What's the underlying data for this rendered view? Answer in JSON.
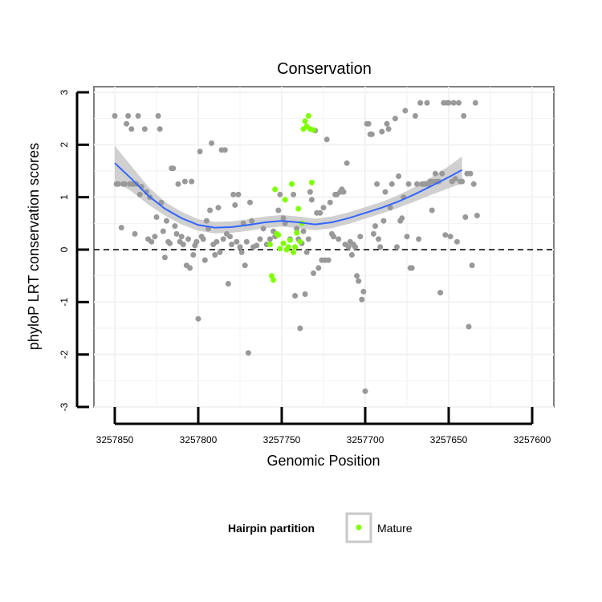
{
  "chart_data": {
    "type": "scatter",
    "title": "Conservation",
    "xlabel": "Genomic Position",
    "ylabel": "phyloP LRT conservation scores",
    "x_reversed": true,
    "xlim": [
      3257852,
      3257598
    ],
    "ylim": [
      -3,
      3
    ],
    "x_ticks": [
      3257850,
      3257800,
      3257750,
      3257700,
      3257650,
      3257600
    ],
    "x_tick_labels": [
      "3257850",
      "3257800",
      "3257750",
      "3257700",
      "3257650",
      "3257600"
    ],
    "y_ticks": [
      -3,
      -2,
      -1,
      0,
      1,
      2,
      3
    ],
    "y_tick_labels": [
      "-3",
      "-2",
      "-1",
      "0",
      "1",
      "2",
      "3"
    ],
    "grid": true,
    "reference_line": {
      "y": 0,
      "style": "dashed"
    },
    "colors": {
      "background_points": "#999999",
      "mature_points": "#7FFF00",
      "smooth_line": "#3366FF",
      "ribbon": "#C8C8C8",
      "panel_border": "#7F7F7F",
      "grid": "#F2F2F2"
    },
    "legend": {
      "title": "Hairpin partition",
      "placement": "bottom",
      "entries": [
        {
          "label": "Mature",
          "color": "#7FFF00"
        }
      ]
    },
    "series": [
      {
        "name": "Hairpin",
        "color": "#999999",
        "points": [
          [
            3257850,
            2.55
          ],
          [
            3257849,
            1.25
          ],
          [
            3257848,
            1.25
          ],
          [
            3257846,
            0.42
          ],
          [
            3257845,
            1.25
          ],
          [
            3257844,
            1.25
          ],
          [
            3257843,
            2.4
          ],
          [
            3257842,
            2.55
          ],
          [
            3257841,
            1.25
          ],
          [
            3257840,
            2.3
          ],
          [
            3257839,
            1.25
          ],
          [
            3257838,
            0.3
          ],
          [
            3257837,
            1.25
          ],
          [
            3257836,
            2.55
          ],
          [
            3257835,
            1.05
          ],
          [
            3257834,
            1.2
          ],
          [
            3257832,
            2.3
          ],
          [
            3257831,
            1.1
          ],
          [
            3257830,
            0.2
          ],
          [
            3257829,
            1.0
          ],
          [
            3257828,
            0.15
          ],
          [
            3257826,
            0.25
          ],
          [
            3257825,
            0.62
          ],
          [
            3257824,
            2.55
          ],
          [
            3257823,
            2.3
          ],
          [
            3257822,
            0.9
          ],
          [
            3257821,
            0.35
          ],
          [
            3257820,
            -0.15
          ],
          [
            3257819,
            0.55
          ],
          [
            3257818,
            0.15
          ],
          [
            3257817,
            0.12
          ],
          [
            3257816,
            1.55
          ],
          [
            3257815,
            1.55
          ],
          [
            3257814,
            0.45
          ],
          [
            3257813,
            0.3
          ],
          [
            3257812,
            1.25
          ],
          [
            3257811,
            0.15
          ],
          [
            3257810,
            0.25
          ],
          [
            3257809,
            0.1
          ],
          [
            3257808,
            1.3
          ],
          [
            3257807,
            -0.3
          ],
          [
            3257806,
            0.2
          ],
          [
            3257805,
            -0.35
          ],
          [
            3257804,
            1.3
          ],
          [
            3257803,
            -0.1
          ],
          [
            3257802,
            0.08
          ],
          [
            3257801,
            0.15
          ],
          [
            3257800,
            -1.32
          ],
          [
            3257799,
            1.87
          ],
          [
            3257798,
            0.25
          ],
          [
            3257797,
            0.2
          ],
          [
            3257796,
            -0.2
          ],
          [
            3257795,
            0.55
          ],
          [
            3257794,
            0.4
          ],
          [
            3257793,
            0.75
          ],
          [
            3257792,
            2.03
          ],
          [
            3257791,
            0.1
          ],
          [
            3257790,
            -0.1
          ],
          [
            3257789,
            0.15
          ],
          [
            3257788,
            0.8
          ],
          [
            3257787,
            -0.05
          ],
          [
            3257786,
            1.9
          ],
          [
            3257785,
            0.2
          ],
          [
            3257784,
            1.9
          ],
          [
            3257783,
            0.3
          ],
          [
            3257782,
            -0.65
          ],
          [
            3257781,
            0.25
          ],
          [
            3257780,
            0.1
          ],
          [
            3257779,
            1.05
          ],
          [
            3257778,
            0.85
          ],
          [
            3257777,
            0.15
          ],
          [
            3257776,
            1.05
          ],
          [
            3257775,
            0.05
          ],
          [
            3257774,
            -0.05
          ],
          [
            3257773,
            0.5
          ],
          [
            3257772,
            -0.3
          ],
          [
            3257771,
            0.15
          ],
          [
            3257770,
            -1.97
          ],
          [
            3257769,
            0.9
          ],
          [
            3257768,
            0.55
          ],
          [
            3257767,
            0.05
          ],
          [
            3257765,
            0.08
          ],
          [
            3257763,
            0.2
          ],
          [
            3257761,
            0.4
          ],
          [
            3257759,
            0.1
          ],
          [
            3257757,
            0.2
          ],
          [
            3257755,
            0.35
          ],
          [
            3257754,
            0.25
          ],
          [
            3257752,
            0.75
          ],
          [
            3257751,
            1.05
          ],
          [
            3257749,
            0.6
          ],
          [
            3257748,
            0.5
          ],
          [
            3257745,
            0.2
          ],
          [
            3257743,
            1.05
          ],
          [
            3257742,
            -0.88
          ],
          [
            3257741,
            0.4
          ],
          [
            3257740,
            0.2
          ],
          [
            3257739,
            -1.5
          ],
          [
            3257738,
            0.12
          ],
          [
            3257737,
            0.35
          ],
          [
            3257736,
            -0.85
          ],
          [
            3257735,
            -0.05
          ],
          [
            3257734,
            0.2
          ],
          [
            3257733,
            1.1
          ],
          [
            3257732,
            0.95
          ],
          [
            3257731,
            -0.45
          ],
          [
            3257730,
            2.27
          ],
          [
            3257729,
            0.7
          ],
          [
            3257728,
            -0.35
          ],
          [
            3257727,
            0.7
          ],
          [
            3257726,
            -0.2
          ],
          [
            3257725,
            0.8
          ],
          [
            3257724,
            -0.2
          ],
          [
            3257723,
            2.1
          ],
          [
            3257722,
            -0.2
          ],
          [
            3257721,
            0.9
          ],
          [
            3257720,
            0.3
          ],
          [
            3257719,
            0.25
          ],
          [
            3257718,
            1.05
          ],
          [
            3257717,
            1.05
          ],
          [
            3257716,
            0.2
          ],
          [
            3257715,
            1.1
          ],
          [
            3257714,
            1.15
          ],
          [
            3257713,
            1.1
          ],
          [
            3257712,
            0.1
          ],
          [
            3257711,
            1.65
          ],
          [
            3257710,
            0.05
          ],
          [
            3257709,
            0.15
          ],
          [
            3257708,
            -0.1
          ],
          [
            3257707,
            0.1
          ],
          [
            3257706,
            0.05
          ],
          [
            3257705,
            -0.5
          ],
          [
            3257704,
            -0.6
          ],
          [
            3257703,
            0.25
          ],
          [
            3257702,
            -0.95
          ],
          [
            3257701,
            -0.8
          ],
          [
            3257700,
            -2.7
          ],
          [
            3257699,
            2.4
          ],
          [
            3257698,
            2.4
          ],
          [
            3257697,
            2.2
          ],
          [
            3257696,
            2.2
          ],
          [
            3257695,
            0.3
          ],
          [
            3257694,
            0.45
          ],
          [
            3257693,
            1.25
          ],
          [
            3257692,
            0.2
          ],
          [
            3257691,
            0.05
          ],
          [
            3257690,
            2.25
          ],
          [
            3257689,
            0.55
          ],
          [
            3257688,
            1.1
          ],
          [
            3257687,
            2.4
          ],
          [
            3257686,
            2.3
          ],
          [
            3257685,
            0.8
          ],
          [
            3257684,
            1.25
          ],
          [
            3257682,
            2.5
          ],
          [
            3257681,
            0.05
          ],
          [
            3257680,
            1.4
          ],
          [
            3257679,
            0.55
          ],
          [
            3257678,
            0.6
          ],
          [
            3257677,
            1.0
          ],
          [
            3257676,
            2.65
          ],
          [
            3257675,
            0.25
          ],
          [
            3257674,
            1.25
          ],
          [
            3257673,
            -0.35
          ],
          [
            3257672,
            -0.35
          ],
          [
            3257670,
            2.55
          ],
          [
            3257669,
            1.25
          ],
          [
            3257668,
            0.2
          ],
          [
            3257667,
            2.8
          ],
          [
            3257666,
            1.25
          ],
          [
            3257665,
            1.25
          ],
          [
            3257664,
            1.25
          ],
          [
            3257663,
            2.8
          ],
          [
            3257662,
            1.25
          ],
          [
            3257661,
            1.3
          ],
          [
            3257660,
            0.75
          ],
          [
            3257659,
            1.3
          ],
          [
            3257658,
            1.45
          ],
          [
            3257657,
            1.3
          ],
          [
            3257656,
            1.3
          ],
          [
            3257655,
            -0.82
          ],
          [
            3257654,
            1.45
          ],
          [
            3257653,
            2.8
          ],
          [
            3257652,
            0.28
          ],
          [
            3257651,
            2.8
          ],
          [
            3257650,
            2.8
          ],
          [
            3257649,
            0.25
          ],
          [
            3257648,
            1.3
          ],
          [
            3257647,
            2.8
          ],
          [
            3257646,
            1.35
          ],
          [
            3257645,
            0.15
          ],
          [
            3257644,
            2.8
          ],
          [
            3257643,
            1.3
          ],
          [
            3257642,
            1.3
          ],
          [
            3257641,
            2.55
          ],
          [
            3257640,
            0.62
          ],
          [
            3257639,
            1.45
          ],
          [
            3257638,
            -1.47
          ],
          [
            3257637,
            1.45
          ],
          [
            3257636,
            -0.3
          ],
          [
            3257635,
            1.25
          ],
          [
            3257634,
            2.8
          ],
          [
            3257633,
            0.65
          ]
        ]
      },
      {
        "name": "Mature",
        "color": "#7FFF00",
        "points": [
          [
            3257757,
            0.1
          ],
          [
            3257756,
            -0.5
          ],
          [
            3257755,
            -0.58
          ],
          [
            3257754,
            1.15
          ],
          [
            3257753,
            0.3
          ],
          [
            3257752,
            0.28
          ],
          [
            3257751,
            0.02
          ],
          [
            3257749,
            0.12
          ],
          [
            3257748,
            0.95
          ],
          [
            3257747,
            0.0
          ],
          [
            3257746,
            0.05
          ],
          [
            3257745,
            0.18
          ],
          [
            3257744,
            1.25
          ],
          [
            3257743,
            -0.05
          ],
          [
            3257742,
            0.05
          ],
          [
            3257741,
            0.32
          ],
          [
            3257740,
            0.78
          ],
          [
            3257739,
            0.15
          ],
          [
            3257738,
            0.5
          ],
          [
            3257737,
            2.3
          ],
          [
            3257736,
            2.45
          ],
          [
            3257735,
            2.35
          ],
          [
            3257734,
            2.55
          ],
          [
            3257733,
            2.3
          ],
          [
            3257732,
            1.28
          ],
          [
            3257731,
            2.28
          ]
        ]
      }
    ],
    "smooth": {
      "color": "#3366FF",
      "points": [
        [
          3257850,
          1.65
        ],
        [
          3257840,
          1.35
        ],
        [
          3257830,
          1.03
        ],
        [
          3257820,
          0.78
        ],
        [
          3257810,
          0.6
        ],
        [
          3257800,
          0.47
        ],
        [
          3257790,
          0.42
        ],
        [
          3257780,
          0.43
        ],
        [
          3257770,
          0.47
        ],
        [
          3257760,
          0.52
        ],
        [
          3257750,
          0.55
        ],
        [
          3257740,
          0.52
        ],
        [
          3257730,
          0.48
        ],
        [
          3257720,
          0.52
        ],
        [
          3257710,
          0.6
        ],
        [
          3257700,
          0.7
        ],
        [
          3257690,
          0.8
        ],
        [
          3257680,
          0.92
        ],
        [
          3257670,
          1.06
        ],
        [
          3257660,
          1.22
        ],
        [
          3257650,
          1.38
        ],
        [
          3257642,
          1.52
        ]
      ],
      "ribbon_halfwidth": [
        0.33,
        0.24,
        0.17,
        0.13,
        0.12,
        0.11,
        0.11,
        0.11,
        0.11,
        0.11,
        0.11,
        0.11,
        0.11,
        0.11,
        0.11,
        0.11,
        0.11,
        0.12,
        0.14,
        0.17,
        0.21,
        0.26
      ]
    }
  }
}
